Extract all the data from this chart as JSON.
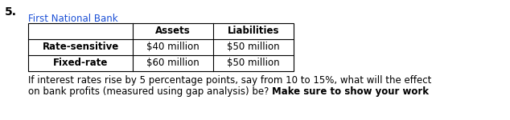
{
  "question_number": "5.",
  "bank_name": "First National Bank",
  "col_headers": [
    "",
    "Assets",
    "Liabilities"
  ],
  "rows": [
    [
      "Rate-sensitive",
      "$40 million",
      "$50 million"
    ],
    [
      "Fixed-rate",
      "$60 million",
      "$50 million"
    ]
  ],
  "line1": "If interest rates rise by 5 percentage points, say from 10 to 15%, what will the effect",
  "line2_normal": "on bank profits (measured using gap analysis) be? ",
  "line2_bold": "Make sure to show your work",
  "text_color": "#000000",
  "table_text_color": "#000000",
  "background_color": "#ffffff",
  "question_num_color": "#000000",
  "bank_name_color": "#1a4fd6",
  "font_size_table": 8.5,
  "font_size_text": 8.5,
  "font_size_qnum": 10
}
